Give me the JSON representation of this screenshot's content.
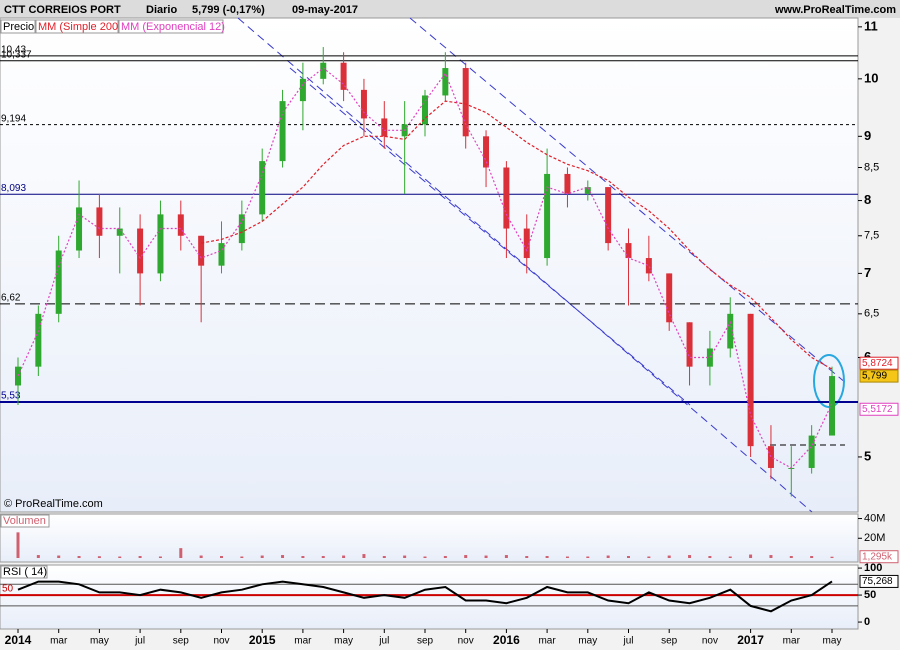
{
  "chart_data": {
    "type": "candlestick",
    "header": {
      "name": "CTT CORREIOS PORT",
      "period": "Diario",
      "price": "5,799 (-0,17%)",
      "date": "09-may-2017",
      "site": "www.ProRealTime.com"
    },
    "legend": [
      "Precio",
      "MM (Simple 200)",
      "MM (Exponencial 12)"
    ],
    "copyright": "© ProRealTime.com",
    "log_scale": true,
    "up_color": "#2fa82f",
    "down_color": "#d9303a",
    "x": [
      "2014-01",
      "2014-02",
      "2014-03",
      "2014-04",
      "2014-05",
      "2014-06",
      "2014-07",
      "2014-08",
      "2014-09",
      "2014-10",
      "2014-11",
      "2014-12",
      "2015-01",
      "2015-02",
      "2015-03",
      "2015-04",
      "2015-05",
      "2015-06",
      "2015-07",
      "2015-08",
      "2015-09",
      "2015-10",
      "2015-11",
      "2015-12",
      "2016-01",
      "2016-02",
      "2016-03",
      "2016-04",
      "2016-05",
      "2016-06",
      "2016-07",
      "2016-08",
      "2016-09",
      "2016-10",
      "2016-11",
      "2016-12",
      "2017-01",
      "2017-02",
      "2017-03",
      "2017-04",
      "2017-05"
    ],
    "open": [
      5.7,
      5.9,
      6.5,
      7.3,
      7.9,
      7.5,
      7.6,
      7.0,
      7.8,
      7.5,
      7.1,
      7.4,
      7.8,
      8.6,
      9.6,
      10.0,
      10.3,
      9.8,
      9.3,
      9.0,
      9.2,
      9.7,
      10.2,
      9.0,
      8.5,
      7.6,
      7.2,
      8.4,
      8.1,
      8.2,
      7.4,
      7.2,
      7.0,
      6.4,
      5.9,
      6.1,
      6.5,
      5.1,
      4.9,
      4.9,
      5.2
    ],
    "high": [
      6.0,
      6.6,
      7.5,
      8.3,
      8.1,
      7.9,
      7.8,
      8.0,
      8.0,
      7.5,
      7.7,
      8.0,
      8.8,
      9.8,
      10.3,
      10.6,
      10.5,
      10.0,
      9.6,
      9.6,
      9.8,
      10.5,
      10.3,
      9.1,
      8.6,
      7.8,
      8.8,
      8.5,
      8.3,
      8.2,
      7.6,
      7.5,
      7.0,
      6.4,
      6.3,
      6.7,
      6.5,
      5.3,
      5.1,
      5.3,
      5.9
    ],
    "low": [
      5.5,
      5.8,
      6.4,
      7.2,
      7.2,
      7.0,
      6.6,
      6.9,
      7.3,
      6.4,
      7.0,
      7.3,
      7.7,
      8.5,
      9.1,
      9.9,
      9.6,
      9.0,
      8.8,
      8.1,
      9.0,
      9.6,
      8.8,
      8.2,
      7.2,
      7.0,
      7.1,
      7.9,
      8.0,
      7.3,
      6.6,
      6.9,
      6.3,
      5.7,
      5.7,
      6.0,
      5.0,
      4.8,
      4.65,
      4.85,
      5.2
    ],
    "close": [
      5.9,
      6.5,
      7.3,
      7.9,
      7.5,
      7.6,
      7.0,
      7.8,
      7.5,
      7.1,
      7.4,
      7.8,
      8.6,
      9.6,
      10.0,
      10.3,
      9.8,
      9.3,
      9.0,
      9.2,
      9.7,
      10.2,
      9.0,
      8.5,
      7.6,
      7.2,
      8.4,
      8.1,
      8.2,
      7.4,
      7.2,
      7.0,
      6.4,
      5.9,
      6.1,
      6.5,
      5.1,
      4.9,
      4.9,
      5.2,
      5.799
    ],
    "series": [
      {
        "name": "MM (Simple 200)",
        "color": "#e0202a",
        "dash": "3,2",
        "values": [
          null,
          null,
          null,
          null,
          null,
          null,
          null,
          null,
          null,
          7.4,
          7.45,
          7.55,
          7.7,
          7.95,
          8.2,
          8.55,
          8.85,
          9.0,
          9.0,
          8.95,
          9.3,
          9.6,
          9.55,
          9.4,
          9.15,
          8.9,
          8.7,
          8.55,
          8.45,
          8.3,
          8.05,
          7.85,
          7.6,
          7.3,
          7.05,
          6.85,
          6.7,
          6.45,
          6.2,
          6.0,
          5.8724
        ]
      },
      {
        "name": "MM (Exponencial 12)",
        "color": "#e040c0",
        "dash": "2,2",
        "values": [
          5.8,
          6.3,
          7.1,
          7.8,
          7.6,
          7.6,
          7.2,
          7.6,
          7.6,
          7.2,
          7.3,
          7.7,
          8.4,
          9.4,
          9.9,
          10.2,
          9.9,
          9.4,
          9.1,
          9.1,
          9.6,
          10.1,
          9.2,
          8.6,
          7.8,
          7.3,
          8.2,
          8.1,
          8.2,
          7.6,
          7.2,
          7.1,
          6.5,
          6.0,
          6.0,
          6.4,
          5.4,
          5.0,
          4.9,
          5.1,
          5.5172
        ]
      }
    ],
    "ylim": [
      4.52,
      11.18
    ],
    "yticks": [
      11,
      10,
      9,
      {
        "value": 8.5,
        "label": "8,5"
      },
      8,
      {
        "value": 7.5,
        "label": "7,5"
      },
      7,
      {
        "value": 6.5,
        "label": "6,5"
      },
      6,
      5
    ],
    "levels": [
      {
        "value": 10.43,
        "label": "10,43",
        "color": "#000000",
        "dash": "none"
      },
      {
        "value": 10.337,
        "label": "10,337",
        "color": "#000000",
        "dash": "none"
      },
      {
        "value": 9.194,
        "label": "9,194",
        "color": "#000000",
        "dash": "3,3"
      },
      {
        "value": 8.093,
        "label": "8,093",
        "color": "#000080",
        "dash": "none"
      },
      {
        "value": 6.62,
        "label": "6,62",
        "color": "#000000",
        "dash": "10,5"
      },
      {
        "value": 5.53,
        "label": "5,53",
        "color": "#000090",
        "dash": "none"
      }
    ],
    "last_labels": [
      {
        "value": 5.8724,
        "label": "5,8724",
        "color": "#e0202a",
        "fill": "#ffffff"
      },
      {
        "value": 5.799,
        "label": "5,799",
        "color": "#000000",
        "fill": "#f5c518"
      },
      {
        "value": 5.5172,
        "label": "5,5172",
        "color": "#e040c0",
        "fill": "#ffffff"
      }
    ],
    "xticks": [
      {
        "value": "2014-01",
        "label": "2014"
      },
      {
        "value": "2014-03",
        "label": "mar"
      },
      {
        "value": "2014-05",
        "label": "may"
      },
      {
        "value": "2014-07",
        "label": "jul"
      },
      {
        "value": "2014-09",
        "label": "sep"
      },
      {
        "value": "2014-11",
        "label": "nov"
      },
      {
        "value": "2015-01",
        "label": "2015"
      },
      {
        "value": "2015-03",
        "label": "mar"
      },
      {
        "value": "2015-05",
        "label": "may"
      },
      {
        "value": "2015-07",
        "label": "jul"
      },
      {
        "value": "2015-09",
        "label": "sep"
      },
      {
        "value": "2015-11",
        "label": "nov"
      },
      {
        "value": "2016-01",
        "label": "2016"
      },
      {
        "value": "2016-03",
        "label": "mar"
      },
      {
        "value": "2016-05",
        "label": "may"
      },
      {
        "value": "2016-07",
        "label": "jul"
      },
      {
        "value": "2016-09",
        "label": "sep"
      },
      {
        "value": "2016-11",
        "label": "nov"
      },
      {
        "value": "2017-01",
        "label": "2017"
      },
      {
        "value": "2017-03",
        "label": "mar"
      },
      {
        "value": "2017-05",
        "label": "may"
      }
    ],
    "volume": {
      "title": "Volumen",
      "color": "#d06070",
      "values": [
        26000000,
        3000000,
        2500000,
        2000000,
        1800000,
        1500000,
        2000000,
        1500000,
        10000000,
        2500000,
        2000000,
        1500000,
        2500000,
        3000000,
        2000000,
        2000000,
        2500000,
        4000000,
        2000000,
        2500000,
        1500000,
        2000000,
        3000000,
        2500000,
        3000000,
        2000000,
        2000000,
        1500000,
        1500000,
        2500000,
        2000000,
        1500000,
        2500000,
        3000000,
        2000000,
        1500000,
        3500000,
        3000000,
        2000000,
        2000000,
        1295000
      ],
      "ylim": [
        0,
        44600000
      ],
      "yticks": [
        {
          "value": 40000000,
          "label": "40M"
        },
        {
          "value": 20000000,
          "label": "20M"
        }
      ],
      "last_label": {
        "value": 1295000,
        "label": "1,295k"
      }
    },
    "rsi": {
      "title": "RSI ( 14)",
      "color": "#000000",
      "values": [
        60,
        75,
        75,
        70,
        55,
        55,
        50,
        60,
        55,
        45,
        55,
        60,
        70,
        75,
        70,
        65,
        55,
        45,
        50,
        45,
        60,
        65,
        40,
        40,
        35,
        45,
        65,
        55,
        55,
        40,
        35,
        55,
        40,
        35,
        45,
        60,
        30,
        20,
        40,
        50,
        75.268
      ],
      "ylim": [
        -11,
        105.7
      ],
      "yticks": [
        100,
        50,
        0
      ],
      "levels": [
        {
          "value": 70,
          "color": "#555555"
        },
        {
          "value": 30,
          "color": "#555555"
        }
      ],
      "midline": {
        "value": 50,
        "label": "50",
        "color": "#cc0000"
      },
      "last_label": {
        "value": 75.268,
        "label": "75,268"
      }
    }
  }
}
